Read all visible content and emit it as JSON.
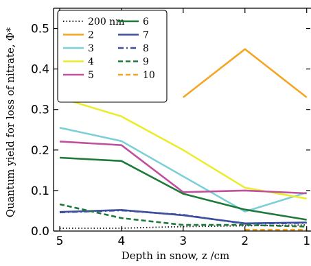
{
  "chart_data": {
    "type": "line",
    "ylabel": "Quantum yield for loss of nitrate, Φ*",
    "xlabel": "Depth in snow, z /cm",
    "xlim": [
      5.1,
      0.93
    ],
    "ylim": [
      0.0,
      0.55
    ],
    "x_ticks": [
      5,
      4,
      3,
      2,
      1
    ],
    "x_tick_labels": [
      "5",
      "4",
      "3",
      "2",
      "1"
    ],
    "y_ticks": [
      0.0,
      0.1,
      0.2,
      0.3,
      0.4,
      0.5
    ],
    "y_tick_labels": [
      "0.0",
      "0.1",
      "0.2",
      "0.3",
      "0.4",
      "0.5"
    ],
    "legend_placement": "top-left",
    "series": [
      {
        "name": "200 nm",
        "color": "#222222",
        "style": "dotted",
        "x": [
          5,
          4,
          3,
          2,
          1
        ],
        "y": [
          0.007,
          0.007,
          0.011,
          0.013,
          0.015
        ]
      },
      {
        "name": "2",
        "color": "#f5a524",
        "style": "solid",
        "x": [
          3,
          2,
          1
        ],
        "y": [
          0.33,
          0.449,
          0.33
        ]
      },
      {
        "name": "3",
        "color": "#7dcfd8",
        "style": "solid",
        "x": [
          5,
          4,
          3,
          2,
          1
        ],
        "y": [
          0.255,
          0.222,
          0.135,
          0.048,
          0.095
        ]
      },
      {
        "name": "4",
        "color": "#ecec2e",
        "style": "solid",
        "x": [
          5,
          4,
          3,
          2,
          1
        ],
        "y": [
          0.329,
          0.283,
          0.2,
          0.107,
          0.08
        ]
      },
      {
        "name": "5",
        "color": "#c0509e",
        "style": "solid",
        "x": [
          5,
          4,
          3,
          2,
          1
        ],
        "y": [
          0.221,
          0.212,
          0.096,
          0.1,
          0.093
        ]
      },
      {
        "name": "6",
        "color": "#1f7a3a",
        "style": "solid",
        "x": [
          5,
          4,
          3,
          2,
          1
        ],
        "y": [
          0.181,
          0.173,
          0.092,
          0.053,
          0.028
        ]
      },
      {
        "name": "7",
        "color": "#3d4f9e",
        "style": "solid",
        "x": [
          5,
          4,
          3,
          2,
          1
        ],
        "y": [
          0.047,
          0.052,
          0.039,
          0.019,
          0.021
        ]
      },
      {
        "name": "8",
        "color": "#3d4f9e",
        "style": "dashdot",
        "x": [
          5,
          4,
          3,
          2,
          1
        ],
        "y": [
          0.046,
          0.051,
          0.04,
          0.018,
          0.02
        ]
      },
      {
        "name": "9",
        "color": "#1f7a3a",
        "style": "dashed",
        "x": [
          5,
          4,
          3,
          2,
          1
        ],
        "y": [
          0.066,
          0.032,
          0.015,
          0.015,
          0.011
        ]
      },
      {
        "name": "10",
        "color": "#f5a524",
        "style": "dashed",
        "x": [
          2,
          1
        ],
        "y": [
          0.003,
          0.003
        ]
      }
    ]
  }
}
